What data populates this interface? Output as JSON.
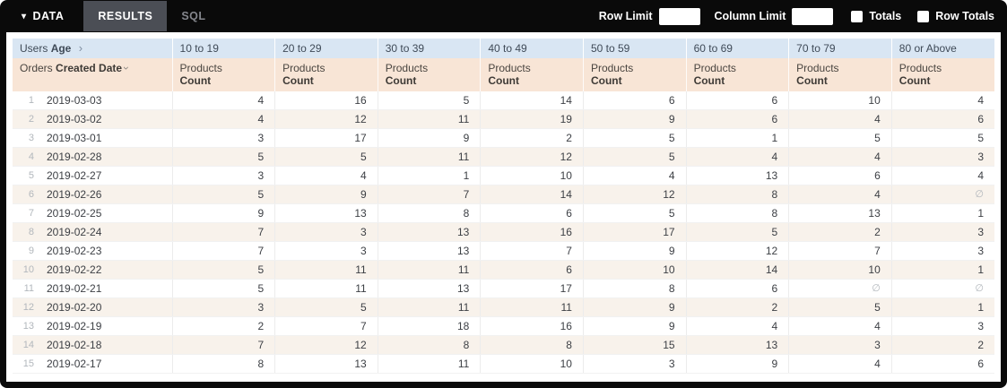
{
  "toolbar": {
    "data_tab": "DATA",
    "results_tab": "RESULTS",
    "sql_tab": "SQL",
    "row_limit_label": "Row Limit",
    "column_limit_label": "Column Limit",
    "totals_label": "Totals",
    "row_totals_label": "Row Totals",
    "row_limit_value": "",
    "column_limit_value": ""
  },
  "table": {
    "pivot_header": {
      "prefix": "Users",
      "field": "Age"
    },
    "row_header": {
      "prefix": "Orders",
      "field": "Created Date"
    },
    "measure": {
      "prefix": "Products",
      "field": "Count"
    },
    "age_buckets": [
      "10 to 19",
      "20 to 29",
      "30 to 39",
      "40 to 49",
      "50 to 59",
      "60 to 69",
      "70 to 79",
      "80 or Above"
    ],
    "null_symbol": "∅",
    "rows": [
      {
        "n": 1,
        "date": "2019-03-03",
        "values": [
          4,
          16,
          5,
          14,
          6,
          6,
          10,
          4
        ]
      },
      {
        "n": 2,
        "date": "2019-03-02",
        "values": [
          4,
          12,
          11,
          19,
          9,
          6,
          4,
          6
        ]
      },
      {
        "n": 3,
        "date": "2019-03-01",
        "values": [
          3,
          17,
          9,
          2,
          5,
          1,
          5,
          5
        ]
      },
      {
        "n": 4,
        "date": "2019-02-28",
        "values": [
          5,
          5,
          11,
          12,
          5,
          4,
          4,
          3
        ]
      },
      {
        "n": 5,
        "date": "2019-02-27",
        "values": [
          3,
          4,
          1,
          10,
          4,
          13,
          6,
          4
        ]
      },
      {
        "n": 6,
        "date": "2019-02-26",
        "values": [
          5,
          9,
          7,
          14,
          12,
          8,
          4,
          null
        ]
      },
      {
        "n": 7,
        "date": "2019-02-25",
        "values": [
          9,
          13,
          8,
          6,
          5,
          8,
          13,
          1
        ]
      },
      {
        "n": 8,
        "date": "2019-02-24",
        "values": [
          7,
          3,
          13,
          16,
          17,
          5,
          2,
          3
        ]
      },
      {
        "n": 9,
        "date": "2019-02-23",
        "values": [
          7,
          3,
          13,
          7,
          9,
          12,
          7,
          3
        ]
      },
      {
        "n": 10,
        "date": "2019-02-22",
        "values": [
          5,
          11,
          11,
          6,
          10,
          14,
          10,
          1
        ]
      },
      {
        "n": 11,
        "date": "2019-02-21",
        "values": [
          5,
          11,
          13,
          17,
          8,
          6,
          null,
          null
        ]
      },
      {
        "n": 12,
        "date": "2019-02-20",
        "values": [
          3,
          5,
          11,
          11,
          9,
          2,
          5,
          1
        ]
      },
      {
        "n": 13,
        "date": "2019-02-19",
        "values": [
          2,
          7,
          18,
          16,
          9,
          4,
          4,
          3
        ]
      },
      {
        "n": 14,
        "date": "2019-02-18",
        "values": [
          7,
          12,
          8,
          8,
          15,
          13,
          3,
          2
        ]
      },
      {
        "n": 15,
        "date": "2019-02-17",
        "values": [
          8,
          13,
          11,
          10,
          3,
          9,
          4,
          6
        ]
      }
    ]
  },
  "colors": {
    "topbar_bg": "#0a0a0a",
    "active_tab_bg": "#4b4e55",
    "pivot_header_bg": "#d9e6f3",
    "measure_header_bg": "#f8e5d6",
    "row_band_bg": "#f8f2eb"
  }
}
